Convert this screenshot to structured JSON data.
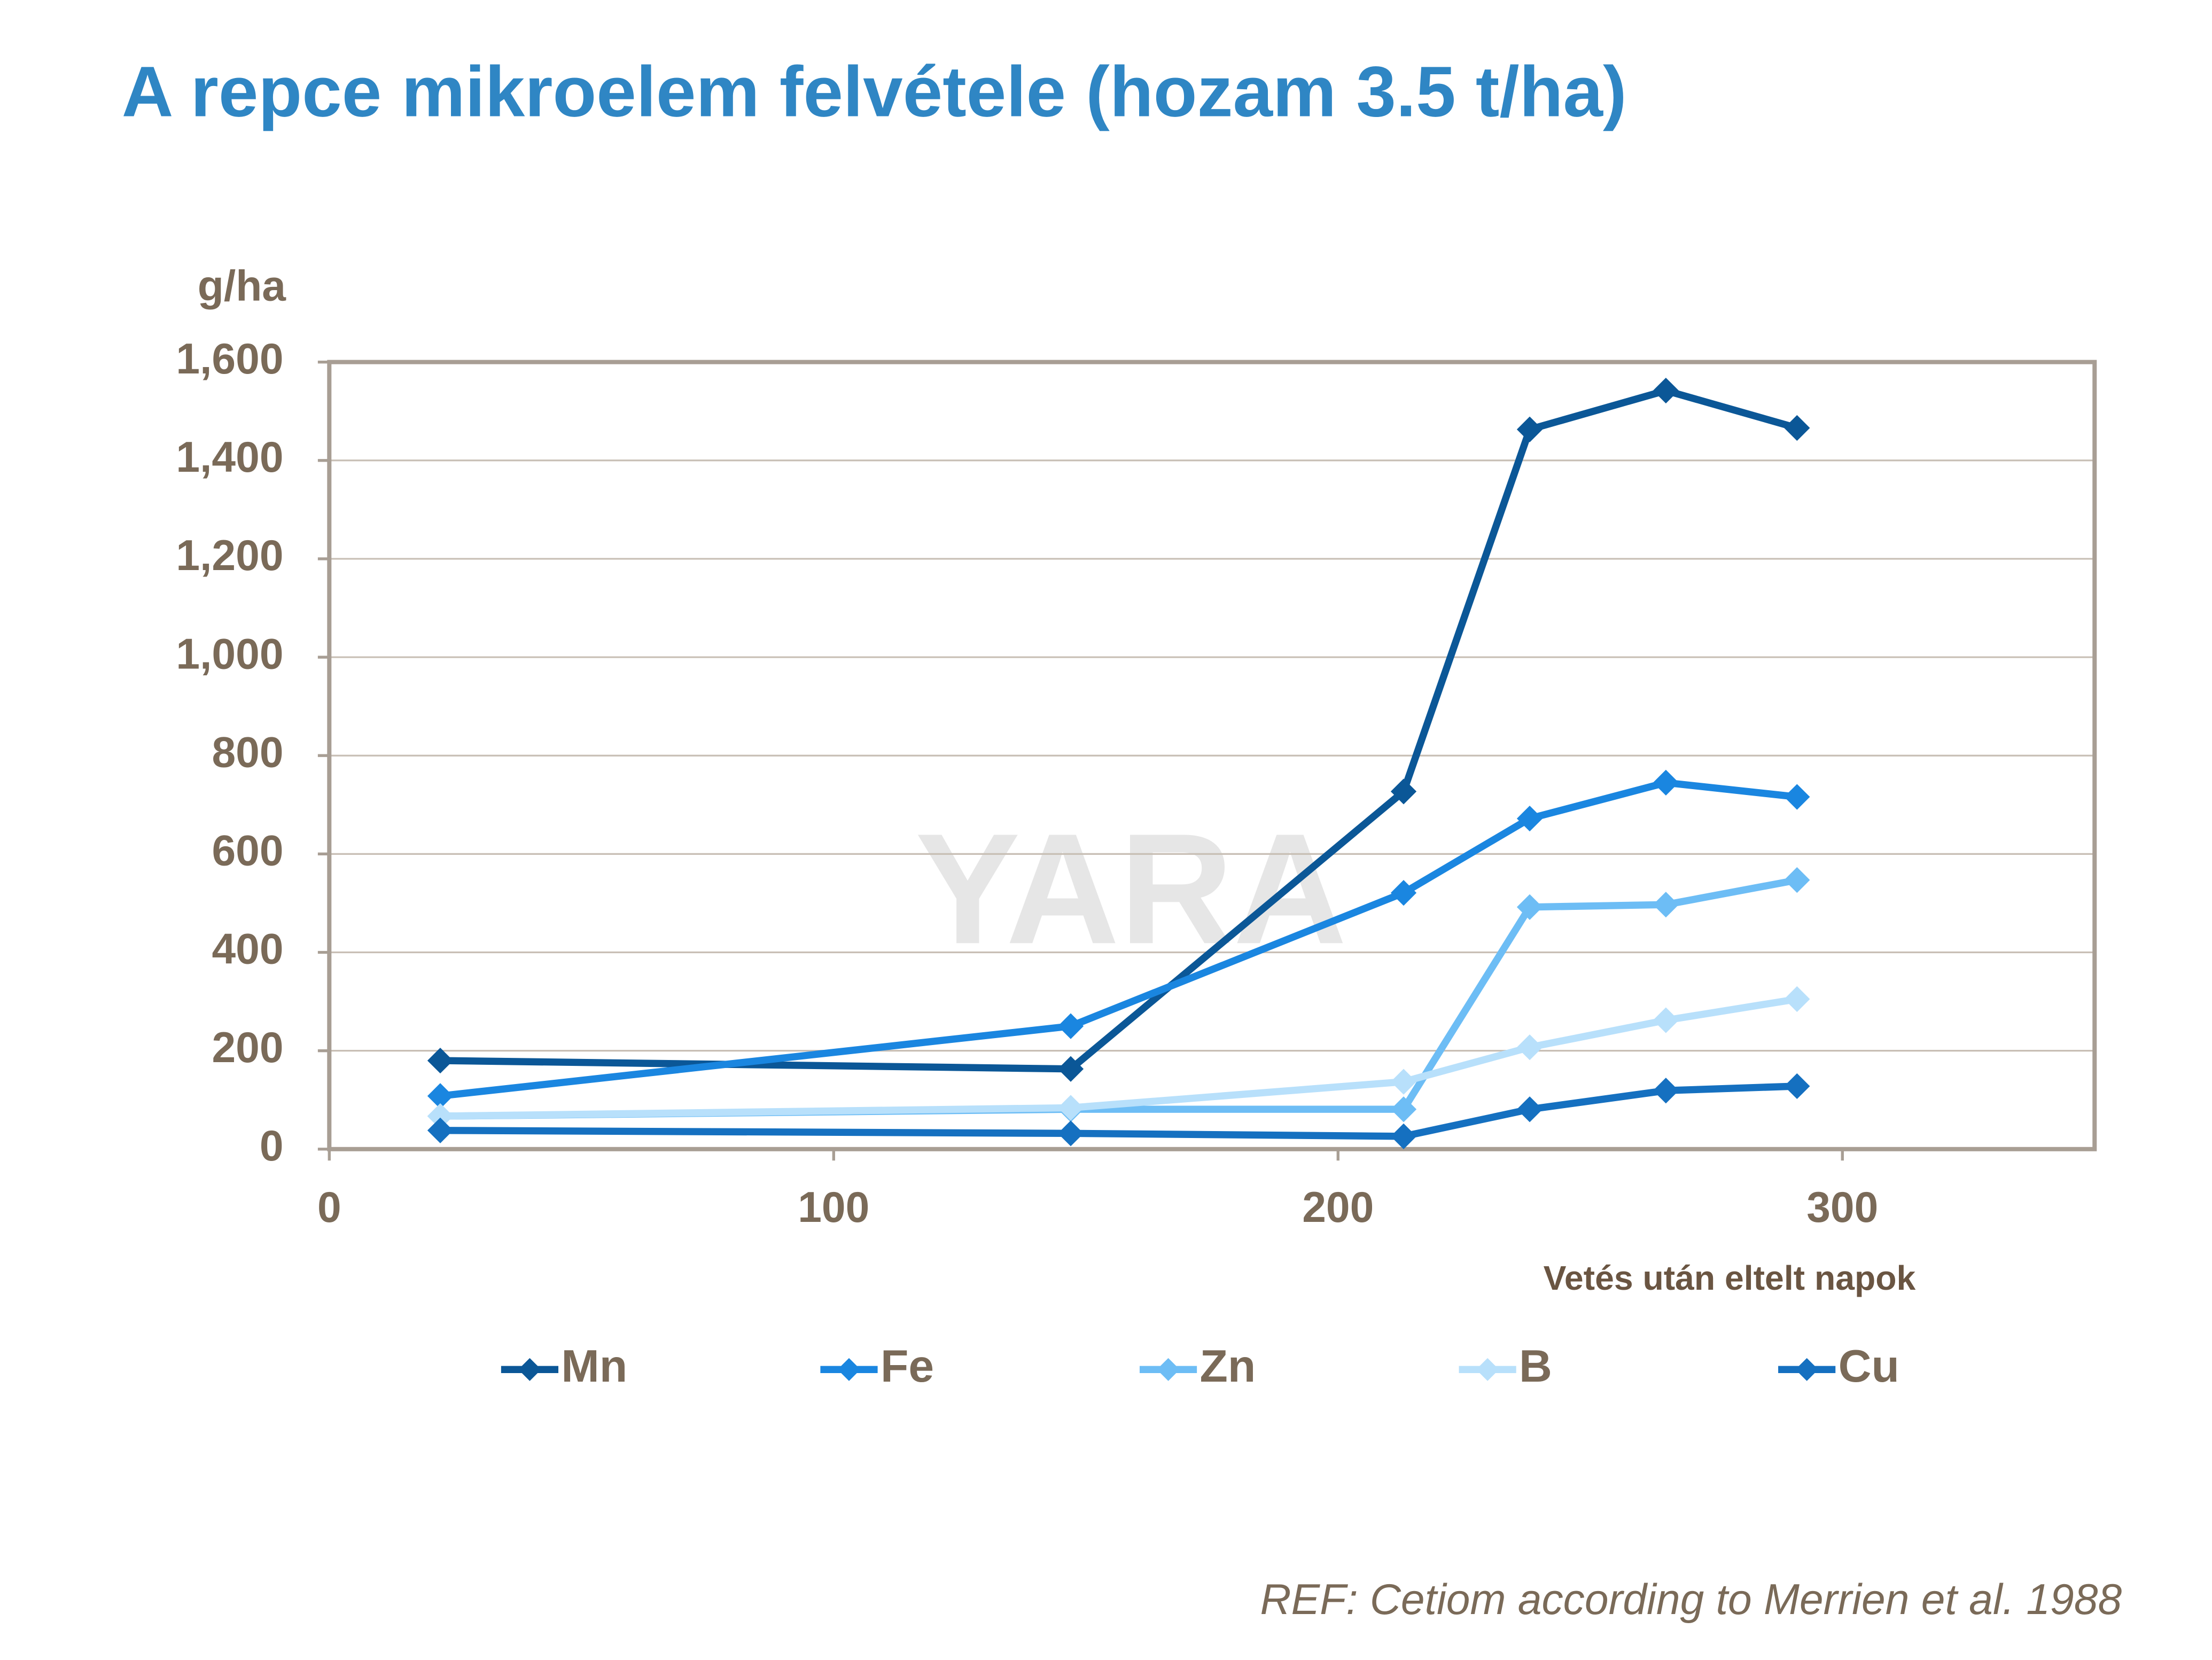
{
  "title": "A repce mikroelem felvétele (hozam 3.5 t/ha)",
  "chart_data": {
    "type": "line",
    "y_label": "g/ha",
    "x_label": "Vetés után eltelt napok",
    "watermark": "YARA",
    "x": [
      22,
      147,
      213,
      238,
      265,
      291
    ],
    "xlim": [
      0,
      350
    ],
    "xticks": [
      0,
      100,
      200,
      300
    ],
    "ylim": [
      0,
      1600
    ],
    "yticks": [
      0,
      200,
      400,
      600,
      800,
      {
        "value": 1000,
        "label": "1,000"
      },
      {
        "value": 1200,
        "label": "1,200"
      },
      {
        "value": 1400,
        "label": "1,400"
      },
      {
        "value": 1600,
        "label": "1,600"
      }
    ],
    "grid": true,
    "legend": "bottom",
    "series": [
      {
        "name": "Mn",
        "color": "#0b5797",
        "values": [
          180,
          163,
          727,
          1463,
          1542,
          1466
        ]
      },
      {
        "name": "Fe",
        "color": "#1a86e0",
        "values": [
          108,
          250,
          521,
          672,
          745,
          716
        ]
      },
      {
        "name": "Zn",
        "color": "#6dbdf5",
        "values": [
          67,
          81,
          81,
          492,
          497,
          547
        ]
      },
      {
        "name": "B",
        "color": "#b8e0fb",
        "values": [
          67,
          84,
          137,
          207,
          262,
          305
        ]
      },
      {
        "name": "Cu",
        "color": "#1570c0",
        "values": [
          38,
          32,
          26,
          81,
          119,
          128
        ]
      }
    ]
  },
  "reference": "REF: Cetiom according to Merrien et al. 1988"
}
